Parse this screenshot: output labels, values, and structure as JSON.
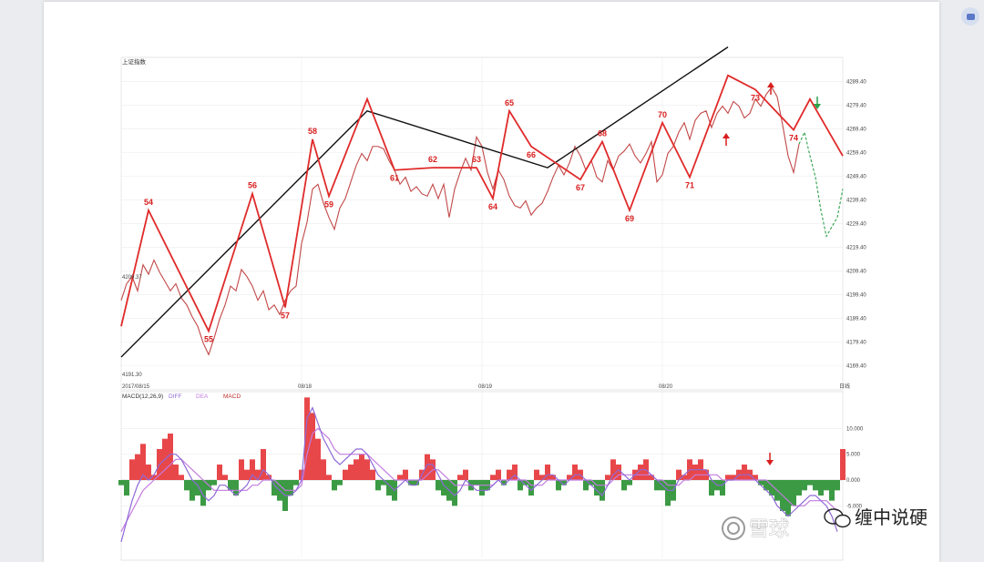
{
  "chart_data": [
    {
      "type": "line",
      "panel": "price",
      "title": "上证指数",
      "x_labels": [
        {
          "i": 0,
          "label": "2017/08/15"
        },
        {
          "i": 33,
          "label": "08/18"
        },
        {
          "i": 66,
          "label": "08/19"
        },
        {
          "i": 99,
          "label": "08/20"
        },
        {
          "i": 132,
          "label": "日线"
        }
      ],
      "y_ticks": [
        "4289.40",
        "4279.40",
        "4269.40",
        "4259.40",
        "4249.40",
        "4239.40",
        "4229.40",
        "4219.40",
        "4209.40",
        "4199.40",
        "4189.40",
        "4179.40",
        "4169.40"
      ],
      "ylim": [
        4163,
        4295
      ],
      "close_series_x": [
        0,
        1,
        2,
        3,
        4,
        5,
        6,
        7,
        8,
        9,
        10,
        11,
        12,
        13,
        14,
        15,
        16,
        17,
        18,
        19,
        20,
        21,
        22,
        23,
        24,
        25,
        26,
        27,
        28,
        29,
        30,
        31,
        32,
        33,
        34,
        35,
        36,
        37,
        38,
        39,
        40,
        41,
        42,
        43,
        44,
        45,
        46,
        47,
        48,
        49,
        50,
        51,
        52,
        53,
        54,
        55,
        56,
        57,
        58,
        59,
        60,
        61,
        62,
        63,
        64,
        65,
        66,
        67,
        68,
        69,
        70,
        71,
        72,
        73,
        74,
        75,
        76,
        77,
        78,
        79,
        80,
        81,
        82,
        83,
        84,
        85,
        86,
        87,
        88,
        89,
        90,
        91,
        92,
        93,
        94,
        95,
        96,
        97,
        98,
        99,
        100,
        101,
        102,
        103,
        104,
        105,
        106,
        107,
        108,
        109,
        110,
        111,
        112,
        113,
        114,
        115,
        116,
        117,
        118,
        119,
        120,
        121,
        122,
        123,
        124,
        125,
        126,
        127,
        128,
        129,
        130,
        131,
        132
      ],
      "close_series": [
        4197,
        4204,
        4207,
        4201,
        4212,
        4208,
        4214,
        4209,
        4205,
        4201,
        4204,
        4198,
        4195,
        4190,
        4186,
        4179,
        4174,
        4181,
        4189,
        4195,
        4203,
        4201,
        4210,
        4207,
        4203,
        4197,
        4201,
        4193,
        4195,
        4191,
        4197,
        4201,
        4203,
        4221,
        4230,
        4244,
        4246,
        4238,
        4232,
        4227,
        4236,
        4240,
        4247,
        4254,
        4259,
        4256,
        4262,
        4262,
        4261,
        4256,
        4252,
        4246,
        4249,
        4243,
        4245,
        4242,
        4241,
        4246,
        4240,
        4246,
        4232,
        4244,
        4251,
        4257,
        4252,
        4266,
        4262,
        4251,
        4244,
        4252,
        4248,
        4241,
        4237,
        4236,
        4239,
        4233,
        4236,
        4238,
        4243,
        4249,
        4254,
        4250,
        4255,
        4262,
        4258,
        4252,
        4256,
        4249,
        4247,
        4256,
        4252,
        4258,
        4260,
        4263,
        4258,
        4255,
        4259,
        4264,
        4247,
        4250,
        4259,
        4262,
        4268,
        4272,
        4265,
        4273,
        4276,
        4277,
        4270,
        4276,
        4279,
        4276,
        4281,
        4279,
        4274,
        4276,
        4282,
        4279,
        4284,
        4287,
        4283,
        4271,
        4258,
        4251,
        4263,
        4268,
        4258,
        4249,
        4235,
        4224,
        4228,
        4232,
        4244
      ],
      "wave_x": [
        0,
        5,
        16,
        24,
        30,
        35,
        38,
        45,
        50,
        57,
        65,
        68,
        71,
        75,
        84,
        88,
        93,
        99,
        104,
        111,
        116,
        123,
        126,
        132
      ],
      "wave_y": [
        4186,
        4235,
        4184,
        4242,
        4194,
        4265,
        4241,
        4282,
        4252,
        4253,
        4253,
        4240,
        4277,
        4262,
        4248,
        4264,
        4235,
        4272,
        4249,
        4292,
        4286,
        4269,
        4282,
        4258
      ],
      "wave_labels": [
        {
          "i": 5,
          "v": 4235,
          "label": "54"
        },
        {
          "i": 16,
          "v": 4184,
          "label": "55"
        },
        {
          "i": 24,
          "v": 4242,
          "label": "56"
        },
        {
          "i": 30,
          "v": 4194,
          "label": "57"
        },
        {
          "i": 35,
          "v": 4265,
          "label": "58"
        },
        {
          "i": 38,
          "v": 4241,
          "label": "59"
        },
        {
          "i": 50,
          "v": 4252,
          "label": "61"
        },
        {
          "i": 57,
          "v": 4253,
          "label": "62"
        },
        {
          "i": 65,
          "v": 4253,
          "label": "63"
        },
        {
          "i": 68,
          "v": 4240,
          "label": "64"
        },
        {
          "i": 71,
          "v": 4277,
          "label": "65"
        },
        {
          "i": 75,
          "v": 4262,
          "label": "66"
        },
        {
          "i": 84,
          "v": 4248,
          "label": "67"
        },
        {
          "i": 88,
          "v": 4264,
          "label": "68"
        },
        {
          "i": 93,
          "v": 4235,
          "label": "69"
        },
        {
          "i": 99,
          "v": 4272,
          "label": "70"
        },
        {
          "i": 104,
          "v": 4249,
          "label": "71"
        },
        {
          "i": 116,
          "v": 4286,
          "label": "73"
        },
        {
          "i": 123,
          "v": 4269,
          "label": "74"
        }
      ],
      "trend_x": [
        0,
        45,
        78,
        111
      ],
      "trend_y": [
        4173,
        4277,
        4253,
        4304
      ]
    },
    {
      "type": "bar",
      "panel": "macd",
      "title": "MACD(12,26,9)",
      "legend": [
        "DIFF",
        "DEA",
        "MACD"
      ],
      "y_ticks": [
        "10.000",
        "5.000",
        "0.000",
        "-5.000"
      ],
      "ylim": [
        -15,
        15
      ],
      "x": [
        0,
        1,
        2,
        3,
        4,
        5,
        6,
        7,
        8,
        9,
        10,
        11,
        12,
        13,
        14,
        15,
        16,
        17,
        18,
        19,
        20,
        21,
        22,
        23,
        24,
        25,
        26,
        27,
        28,
        29,
        30,
        31,
        32,
        33,
        34,
        35,
        36,
        37,
        38,
        39,
        40,
        41,
        42,
        43,
        44,
        45,
        46,
        47,
        48,
        49,
        50,
        51,
        52,
        53,
        54,
        55,
        56,
        57,
        58,
        59,
        60,
        61,
        62,
        63,
        64,
        65,
        66,
        67,
        68,
        69,
        70,
        71,
        72,
        73,
        74,
        75,
        76,
        77,
        78,
        79,
        80,
        81,
        82,
        83,
        84,
        85,
        86,
        87,
        88,
        89,
        90,
        91,
        92,
        93,
        94,
        95,
        96,
        97,
        98,
        99,
        100,
        101,
        102,
        103,
        104,
        105,
        106,
        107,
        108,
        109,
        110,
        111,
        112,
        113,
        114,
        115,
        116,
        117,
        118,
        119,
        120,
        121,
        122,
        123,
        124,
        125,
        126,
        127,
        128,
        129,
        130,
        131,
        132
      ],
      "macd": [
        -1,
        -3,
        4,
        5,
        7,
        3,
        1,
        6,
        8,
        9,
        3,
        1,
        -2,
        -4,
        -3,
        -5,
        -2,
        -1,
        3,
        1,
        -2,
        -3,
        4,
        2,
        4,
        2,
        6,
        1,
        -3,
        -4,
        -6,
        -3,
        -1,
        2,
        16,
        13,
        8,
        4,
        1,
        -2,
        -1,
        2,
        3,
        4,
        5,
        4,
        2,
        -2,
        -1,
        -3,
        -4,
        1,
        2,
        -1,
        -1,
        2,
        5,
        4,
        -2,
        -3,
        -4,
        -5,
        1,
        2,
        -2,
        -1,
        -3,
        -2,
        1,
        2,
        -1,
        2,
        3,
        -2,
        -1,
        -3,
        2,
        1,
        3,
        1,
        -2,
        -1,
        1,
        3,
        2,
        -2,
        -1,
        -3,
        -4,
        1,
        4,
        3,
        -2,
        -1,
        2,
        3,
        4,
        1,
        -2,
        -2,
        -5,
        -4,
        2,
        1,
        4,
        3,
        4,
        2,
        -3,
        -2,
        -3,
        1,
        1,
        2,
        3,
        2,
        1,
        -1,
        -2,
        -3,
        -4,
        -6,
        -7,
        -5,
        -3,
        -2,
        -1,
        -2,
        -3,
        -2,
        -4,
        -2,
        6
      ],
      "diff": [
        -12,
        -8,
        -4,
        -1,
        1,
        0,
        1,
        3,
        4,
        5,
        5,
        4,
        2,
        0,
        -1,
        -3,
        -4,
        -3,
        -1,
        -1,
        -2,
        -3,
        -2,
        -1,
        1,
        0,
        2,
        1,
        -1,
        -2,
        -3,
        -3,
        -2,
        0,
        12,
        14,
        11,
        8,
        6,
        4,
        3,
        4,
        5,
        6,
        6,
        5,
        3,
        1,
        0,
        -1,
        -2,
        -1,
        0,
        -1,
        -1,
        1,
        3,
        3,
        1,
        -1,
        -2,
        -3,
        -2,
        0,
        -1,
        -2,
        -2,
        -2,
        -1,
        0,
        -1,
        0,
        1,
        0,
        -1,
        -2,
        -1,
        0,
        1,
        1,
        0,
        -1,
        0,
        1,
        1,
        0,
        -1,
        -2,
        -3,
        -1,
        1,
        2,
        1,
        0,
        1,
        2,
        2,
        1,
        0,
        -1,
        -2,
        -2,
        0,
        1,
        2,
        2,
        2,
        2,
        0,
        -1,
        -1,
        0,
        0,
        1,
        1,
        1,
        0,
        -1,
        -2,
        -3,
        -5,
        -6,
        -7,
        -6,
        -5,
        -4,
        -3,
        -3,
        -4,
        -5,
        -7,
        -10
      ],
      "dea": [
        -10,
        -8,
        -6,
        -4,
        -2,
        -1,
        0,
        1,
        2,
        3,
        4,
        4,
        3,
        2,
        1,
        0,
        -1,
        -2,
        -2,
        -2,
        -2,
        -2,
        -2,
        -2,
        -1,
        -1,
        0,
        0,
        0,
        -1,
        -2,
        -2,
        -2,
        -1,
        5,
        9,
        10,
        9,
        8,
        6,
        5,
        5,
        5,
        5,
        5,
        5,
        4,
        3,
        2,
        1,
        0,
        0,
        0,
        0,
        0,
        0,
        1,
        2,
        2,
        1,
        0,
        -1,
        -1,
        -1,
        -1,
        -1,
        -1,
        -1,
        -1,
        0,
        0,
        0,
        0,
        0,
        0,
        -1,
        -1,
        -1,
        0,
        0,
        0,
        0,
        0,
        0,
        0,
        0,
        0,
        -1,
        -1,
        -1,
        0,
        1,
        1,
        1,
        1,
        1,
        1,
        1,
        0,
        0,
        -1,
        -1,
        -1,
        0,
        0,
        1,
        1,
        1,
        1,
        1,
        0,
        0,
        0,
        0,
        0,
        0,
        0,
        0,
        0,
        -1,
        -2,
        -3,
        -4,
        -5,
        -5,
        -5,
        -4,
        -4,
        -4,
        -4,
        -5,
        -6
      ]
    }
  ],
  "overlays": {
    "left_tags": [
      "4209.37",
      "4191.30"
    ],
    "watermark": "雪球",
    "wechat_name": "缠中说硬"
  }
}
